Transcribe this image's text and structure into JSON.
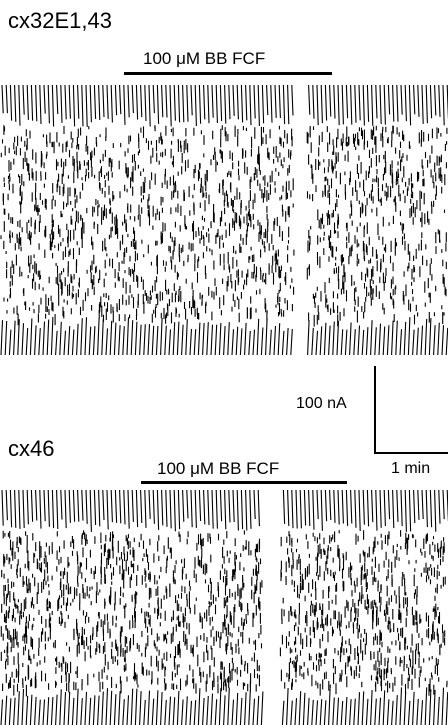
{
  "panels": [
    {
      "title": "cx32E1,43",
      "treatment_label": "100 μM BB FCF"
    },
    {
      "title": "cx46",
      "treatment_label": "100 μM BB FCF"
    }
  ],
  "scale_bar": {
    "current_label": "100 nA",
    "time_label": "1 min"
  },
  "colors": {
    "ink": "#000000",
    "background": "#ffffff"
  }
}
